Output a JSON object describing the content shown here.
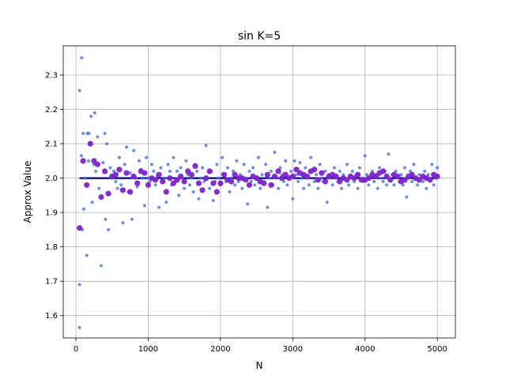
{
  "chart_data": {
    "type": "scatter",
    "title": "sin K=5",
    "xlabel": "N",
    "ylabel": "Approx Value",
    "xlim": [
      -175,
      5250
    ],
    "ylim": [
      1.535,
      2.385
    ],
    "xticks": [
      0,
      1000,
      2000,
      3000,
      4000,
      5000
    ],
    "yticks": [
      1.6,
      1.7,
      1.8,
      1.9,
      2.0,
      2.1,
      2.2,
      2.3
    ],
    "grid": true,
    "reference_line": {
      "y": 2.0,
      "x": [
        50,
        5000
      ],
      "color": "#000080"
    },
    "series": [
      {
        "style": "small-dots",
        "color": "#4472d8",
        "points": [
          [
            50,
            2.255
          ],
          [
            50,
            1.565
          ],
          [
            50,
            1.69
          ],
          [
            50,
            1.855
          ],
          [
            75,
            2.065
          ],
          [
            80,
            2.35
          ],
          [
            90,
            1.85
          ],
          [
            100,
            2.13
          ],
          [
            110,
            1.91
          ],
          [
            125,
            2.0
          ],
          [
            150,
            1.775
          ],
          [
            160,
            2.13
          ],
          [
            175,
            2.05
          ],
          [
            180,
            2.13
          ],
          [
            200,
            2.1
          ],
          [
            210,
            2.18
          ],
          [
            225,
            1.93
          ],
          [
            250,
            2.04
          ],
          [
            260,
            2.19
          ],
          [
            275,
            2.02
          ],
          [
            300,
            2.12
          ],
          [
            320,
            1.97
          ],
          [
            350,
            1.745
          ],
          [
            375,
            2.045
          ],
          [
            400,
            2.13
          ],
          [
            410,
            1.88
          ],
          [
            425,
            2.1
          ],
          [
            450,
            1.85
          ],
          [
            475,
            2.03
          ],
          [
            500,
            2.0
          ],
          [
            525,
            2.02
          ],
          [
            550,
            1.99
          ],
          [
            575,
            1.97
          ],
          [
            600,
            2.06
          ],
          [
            625,
            1.98
          ],
          [
            650,
            1.87
          ],
          [
            675,
            2.04
          ],
          [
            700,
            2.09
          ],
          [
            725,
            1.96
          ],
          [
            750,
            2.015
          ],
          [
            775,
            1.88
          ],
          [
            800,
            2.08
          ],
          [
            825,
            2.0
          ],
          [
            850,
            1.975
          ],
          [
            875,
            2.05
          ],
          [
            900,
            2.025
          ],
          [
            925,
            2.0
          ],
          [
            950,
            1.92
          ],
          [
            975,
            2.06
          ],
          [
            1000,
            2.0
          ],
          [
            1025,
            1.99
          ],
          [
            1050,
            2.04
          ],
          [
            1075,
            2.02
          ],
          [
            1100,
            1.98
          ],
          [
            1125,
            2.005
          ],
          [
            1150,
            1.915
          ],
          [
            1175,
            2.03
          ],
          [
            1200,
            1.99
          ],
          [
            1225,
            2.0
          ],
          [
            1250,
            1.93
          ],
          [
            1275,
            2.04
          ],
          [
            1300,
            2.02
          ],
          [
            1325,
            1.98
          ],
          [
            1350,
            2.06
          ],
          [
            1375,
            1.99
          ],
          [
            1400,
            2.02
          ],
          [
            1425,
            1.95
          ],
          [
            1450,
            2.03
          ],
          [
            1475,
            2.0
          ],
          [
            1500,
            1.97
          ],
          [
            1525,
            2.05
          ],
          [
            1550,
            2.01
          ],
          [
            1575,
            1.98
          ],
          [
            1600,
            2.0
          ],
          [
            1625,
            1.96
          ],
          [
            1650,
            2.04
          ],
          [
            1675,
            2.02
          ],
          [
            1700,
            1.94
          ],
          [
            1725,
            2.0
          ],
          [
            1750,
            2.03
          ],
          [
            1775,
            1.99
          ],
          [
            1800,
            2.095
          ],
          [
            1825,
            2.0
          ],
          [
            1850,
            1.97
          ],
          [
            1875,
            2.02
          ],
          [
            1900,
            1.935
          ],
          [
            1925,
            1.99
          ],
          [
            1950,
            2.04
          ],
          [
            1975,
            2.0
          ],
          [
            2000,
            1.98
          ],
          [
            2025,
            2.06
          ],
          [
            2050,
            2.01
          ],
          [
            2075,
            1.99
          ],
          [
            2100,
            2.03
          ],
          [
            2125,
            1.96
          ],
          [
            2150,
            2.0
          ],
          [
            2175,
            2.02
          ],
          [
            2200,
            1.98
          ],
          [
            2225,
            2.05
          ],
          [
            2250,
            1.99
          ],
          [
            2275,
            2.01
          ],
          [
            2300,
            1.97
          ],
          [
            2325,
            2.04
          ],
          [
            2350,
            2.0
          ],
          [
            2375,
            1.925
          ],
          [
            2400,
            2.02
          ],
          [
            2425,
            1.99
          ],
          [
            2450,
            2.03
          ],
          [
            2475,
            1.98
          ],
          [
            2500,
            2.0
          ],
          [
            2525,
            2.06
          ],
          [
            2550,
            1.97
          ],
          [
            2575,
            2.01
          ],
          [
            2600,
            1.99
          ],
          [
            2625,
            2.04
          ],
          [
            2650,
            1.915
          ],
          [
            2675,
            2.0
          ],
          [
            2700,
            2.02
          ],
          [
            2725,
            1.98
          ],
          [
            2750,
            2.075
          ],
          [
            2775,
            2.0
          ],
          [
            2800,
            1.97
          ],
          [
            2825,
            2.03
          ],
          [
            2850,
            2.01
          ],
          [
            2875,
            1.99
          ],
          [
            2900,
            2.05
          ],
          [
            2925,
            1.98
          ],
          [
            2950,
            2.0
          ],
          [
            2975,
            2.02
          ],
          [
            3000,
            1.94
          ],
          [
            3025,
            2.05
          ],
          [
            3050,
            2.01
          ],
          [
            3075,
            1.99
          ],
          [
            3100,
            2.045
          ],
          [
            3125,
            2.0
          ],
          [
            3150,
            1.97
          ],
          [
            3175,
            2.03
          ],
          [
            3200,
            2.0
          ],
          [
            3225,
            1.98
          ],
          [
            3250,
            2.06
          ],
          [
            3275,
            2.02
          ],
          [
            3300,
            1.99
          ],
          [
            3325,
            2.01
          ],
          [
            3350,
            1.97
          ],
          [
            3375,
            2.04
          ],
          [
            3400,
            2.0
          ],
          [
            3425,
            1.99
          ],
          [
            3450,
            2.02
          ],
          [
            3475,
            1.93
          ],
          [
            3500,
            2.01
          ],
          [
            3525,
            2.0
          ],
          [
            3550,
            1.98
          ],
          [
            3575,
            2.03
          ],
          [
            3600,
            2.0
          ],
          [
            3625,
            1.99
          ],
          [
            3650,
            2.02
          ],
          [
            3675,
            1.97
          ],
          [
            3700,
            2.01
          ],
          [
            3725,
            2.0
          ],
          [
            3750,
            2.04
          ],
          [
            3775,
            1.98
          ],
          [
            3800,
            2.0
          ],
          [
            3825,
            2.02
          ],
          [
            3850,
            1.99
          ],
          [
            3875,
            2.01
          ],
          [
            3900,
            1.97
          ],
          [
            3925,
            2.03
          ],
          [
            3950,
            2.0
          ],
          [
            3975,
            1.99
          ],
          [
            4000,
            2.065
          ],
          [
            4025,
            2.01
          ],
          [
            4050,
            1.98
          ],
          [
            4075,
            2.0
          ],
          [
            4100,
            2.02
          ],
          [
            4125,
            1.99
          ],
          [
            4150,
            2.01
          ],
          [
            4175,
            1.97
          ],
          [
            4200,
            2.03
          ],
          [
            4225,
            2.0
          ],
          [
            4250,
            1.99
          ],
          [
            4275,
            2.02
          ],
          [
            4300,
            1.98
          ],
          [
            4325,
            2.07
          ],
          [
            4350,
            2.0
          ],
          [
            4375,
            2.01
          ],
          [
            4400,
            1.98
          ],
          [
            4425,
            2.02
          ],
          [
            4450,
            2.0
          ],
          [
            4475,
            1.99
          ],
          [
            4500,
            2.01
          ],
          [
            4525,
            1.98
          ],
          [
            4550,
            2.03
          ],
          [
            4575,
            1.945
          ],
          [
            4600,
            2.0
          ],
          [
            4625,
            2.02
          ],
          [
            4650,
            1.99
          ],
          [
            4675,
            2.04
          ],
          [
            4700,
            2.0
          ],
          [
            4725,
            1.98
          ],
          [
            4750,
            2.01
          ],
          [
            4775,
            2.0
          ],
          [
            4800,
            1.99
          ],
          [
            4825,
            2.02
          ],
          [
            4850,
            1.97
          ],
          [
            4875,
            2.01
          ],
          [
            4900,
            2.0
          ],
          [
            4925,
            2.04
          ],
          [
            4950,
            1.98
          ],
          [
            4975,
            2.0
          ],
          [
            5000,
            2.03
          ]
        ]
      },
      {
        "style": "large-dots",
        "color": "#7e22c8",
        "points": [
          [
            50,
            1.855
          ],
          [
            100,
            2.05
          ],
          [
            150,
            1.98
          ],
          [
            200,
            2.1
          ],
          [
            250,
            2.05
          ],
          [
            300,
            2.04
          ],
          [
            350,
            1.945
          ],
          [
            400,
            2.02
          ],
          [
            450,
            1.955
          ],
          [
            500,
            2.005
          ],
          [
            550,
            2.01
          ],
          [
            600,
            2.025
          ],
          [
            650,
            1.965
          ],
          [
            700,
            2.015
          ],
          [
            750,
            1.96
          ],
          [
            800,
            2.005
          ],
          [
            850,
            1.985
          ],
          [
            900,
            2.02
          ],
          [
            950,
            2.015
          ],
          [
            1000,
            1.98
          ],
          [
            1050,
            2.0
          ],
          [
            1100,
            1.995
          ],
          [
            1150,
            2.01
          ],
          [
            1200,
            1.99
          ],
          [
            1250,
            1.96
          ],
          [
            1300,
            2.0
          ],
          [
            1350,
            1.985
          ],
          [
            1400,
            1.995
          ],
          [
            1450,
            2.005
          ],
          [
            1500,
            1.99
          ],
          [
            1550,
            2.02
          ],
          [
            1600,
            2.01
          ],
          [
            1650,
            2.035
          ],
          [
            1700,
            1.985
          ],
          [
            1750,
            1.965
          ],
          [
            1800,
            2.0
          ],
          [
            1850,
            2.02
          ],
          [
            1900,
            1.985
          ],
          [
            1950,
            1.96
          ],
          [
            2000,
            1.985
          ],
          [
            2050,
            2.01
          ],
          [
            2100,
            1.995
          ],
          [
            2150,
            1.99
          ],
          [
            2200,
            2.01
          ],
          [
            2250,
            2.0
          ],
          [
            2300,
            2.0
          ],
          [
            2350,
            1.995
          ],
          [
            2400,
            1.98
          ],
          [
            2450,
            2.005
          ],
          [
            2500,
            2.0
          ],
          [
            2550,
            1.99
          ],
          [
            2600,
            1.985
          ],
          [
            2650,
            2.01
          ],
          [
            2700,
            1.98
          ],
          [
            2750,
            2.005
          ],
          [
            2800,
            2.02
          ],
          [
            2850,
            2.0
          ],
          [
            2900,
            2.01
          ],
          [
            2950,
            2.0
          ],
          [
            3000,
            2.005
          ],
          [
            3050,
            2.025
          ],
          [
            3100,
            2.015
          ],
          [
            3150,
            2.01
          ],
          [
            3200,
            2.005
          ],
          [
            3250,
            2.02
          ],
          [
            3300,
            2.025
          ],
          [
            3350,
            1.995
          ],
          [
            3400,
            2.015
          ],
          [
            3450,
            1.99
          ],
          [
            3500,
            2.005
          ],
          [
            3550,
            2.01
          ],
          [
            3600,
            2.005
          ],
          [
            3650,
            1.99
          ],
          [
            3700,
            2.0
          ],
          [
            3750,
            1.995
          ],
          [
            3800,
            2.005
          ],
          [
            3850,
            2.0
          ],
          [
            3900,
            2.01
          ],
          [
            3950,
            1.995
          ],
          [
            4000,
            1.995
          ],
          [
            4050,
            2.0
          ],
          [
            4100,
            2.01
          ],
          [
            4150,
            2.005
          ],
          [
            4200,
            2.015
          ],
          [
            4250,
            2.02
          ],
          [
            4300,
            2.005
          ],
          [
            4350,
            1.995
          ],
          [
            4400,
            2.01
          ],
          [
            4450,
            2.005
          ],
          [
            4500,
            1.99
          ],
          [
            4550,
            1.995
          ],
          [
            4600,
            2.005
          ],
          [
            4650,
            2.01
          ],
          [
            4700,
            2.0
          ],
          [
            4750,
            1.995
          ],
          [
            4800,
            2.005
          ],
          [
            4850,
            2.0
          ],
          [
            4900,
            1.995
          ],
          [
            4950,
            2.01
          ],
          [
            5000,
            2.005
          ]
        ]
      }
    ]
  }
}
